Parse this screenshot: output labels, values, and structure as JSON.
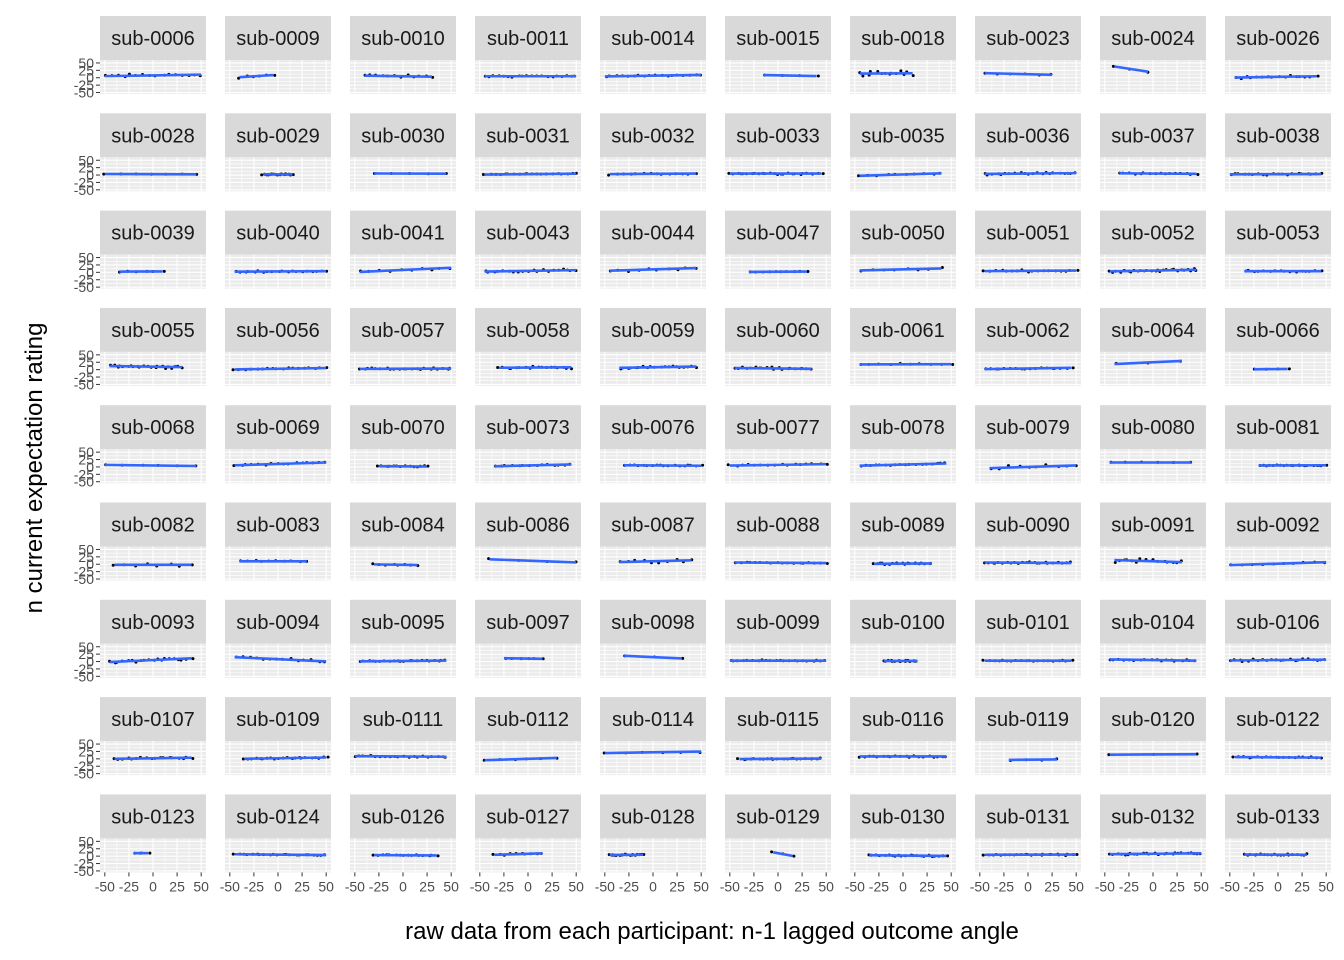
{
  "chart_data": {
    "type": "scatter",
    "xlabel": "raw data from each participant: n-1 lagged outcome angle",
    "ylabel": "n current expectation rating",
    "xlim": [
      -55,
      55
    ],
    "ylim": [
      -55,
      60
    ],
    "x_ticks": [
      -50,
      -25,
      0,
      25,
      50
    ],
    "x_tick_labels": [
      "-50",
      "-25",
      "0",
      "25",
      "50"
    ],
    "y_ticks": [
      -50,
      -25,
      0,
      25,
      50
    ],
    "y_tick_labels": [
      "-50",
      "-25",
      "0",
      "25",
      "50"
    ],
    "grid": true,
    "facet_columns": 10,
    "colors": {
      "panel_bg": "#ebebeb",
      "strip_bg": "#d9d9d9",
      "grid": "#ffffff",
      "points": "#000000",
      "fit_line": "#3366ff"
    },
    "panels": [
      {
        "label": "sub-0006",
        "xrange": [
          -50,
          50
        ],
        "intercept": 8,
        "slope": 0.05,
        "n": 16,
        "spread": 8
      },
      {
        "label": "sub-0009",
        "xrange": [
          -40,
          -5
        ],
        "intercept": 10,
        "slope": 0.2,
        "n": 6,
        "spread": 9
      },
      {
        "label": "sub-0010",
        "xrange": [
          -40,
          30
        ],
        "intercept": 5,
        "slope": -0.05,
        "n": 12,
        "spread": 6
      },
      {
        "label": "sub-0011",
        "xrange": [
          -45,
          50
        ],
        "intercept": 5,
        "slope": 0.0,
        "n": 20,
        "spread": 4
      },
      {
        "label": "sub-0014",
        "xrange": [
          -50,
          50
        ],
        "intercept": 7,
        "slope": 0.05,
        "n": 18,
        "spread": 3
      },
      {
        "label": "sub-0015",
        "xrange": [
          -15,
          40
        ],
        "intercept": 8,
        "slope": -0.06,
        "n": 4,
        "spread": 2
      },
      {
        "label": "sub-0018",
        "xrange": [
          -45,
          10
        ],
        "intercept": 15,
        "slope": 0.02,
        "n": 14,
        "spread": 12
      },
      {
        "label": "sub-0023",
        "xrange": [
          -45,
          25
        ],
        "intercept": 12,
        "slope": -0.08,
        "n": 6,
        "spread": 3
      },
      {
        "label": "sub-0024",
        "xrange": [
          -40,
          -5
        ],
        "intercept": 18,
        "slope": -0.5,
        "n": 3,
        "spread": 3
      },
      {
        "label": "sub-0026",
        "xrange": [
          -45,
          40
        ],
        "intercept": 3,
        "slope": 0.05,
        "n": 16,
        "spread": 6
      },
      {
        "label": "sub-0028",
        "xrange": [
          -50,
          45
        ],
        "intercept": 3,
        "slope": -0.01,
        "n": 7,
        "spread": 1
      },
      {
        "label": "sub-0029",
        "xrange": [
          -15,
          15
        ],
        "intercept": 2,
        "slope": 0.0,
        "n": 20,
        "spread": 3
      },
      {
        "label": "sub-0030",
        "xrange": [
          -30,
          45
        ],
        "intercept": 5,
        "slope": -0.01,
        "n": 5,
        "spread": 1
      },
      {
        "label": "sub-0031",
        "xrange": [
          -45,
          50
        ],
        "intercept": 3,
        "slope": 0.03,
        "n": 20,
        "spread": 3
      },
      {
        "label": "sub-0032",
        "xrange": [
          -45,
          45
        ],
        "intercept": 4,
        "slope": 0.02,
        "n": 14,
        "spread": 4
      },
      {
        "label": "sub-0033",
        "xrange": [
          -50,
          45
        ],
        "intercept": 5,
        "slope": 0.0,
        "n": 26,
        "spread": 4
      },
      {
        "label": "sub-0035",
        "xrange": [
          -45,
          40
        ],
        "intercept": 2,
        "slope": 0.1,
        "n": 10,
        "spread": 4
      },
      {
        "label": "sub-0036",
        "xrange": [
          -45,
          50
        ],
        "intercept": 5,
        "slope": 0.03,
        "n": 22,
        "spread": 5
      },
      {
        "label": "sub-0037",
        "xrange": [
          -35,
          45
        ],
        "intercept": 5,
        "slope": -0.02,
        "n": 16,
        "spread": 4
      },
      {
        "label": "sub-0038",
        "xrange": [
          -50,
          45
        ],
        "intercept": 3,
        "slope": 0.01,
        "n": 20,
        "spread": 5
      },
      {
        "label": "sub-0039",
        "xrange": [
          -35,
          10
        ],
        "intercept": 3,
        "slope": 0.02,
        "n": 6,
        "spread": 3
      },
      {
        "label": "sub-0040",
        "xrange": [
          -45,
          50
        ],
        "intercept": 3,
        "slope": 0.02,
        "n": 20,
        "spread": 3
      },
      {
        "label": "sub-0041",
        "xrange": [
          -45,
          50
        ],
        "intercept": 8,
        "slope": 0.15,
        "n": 10,
        "spread": 5
      },
      {
        "label": "sub-0043",
        "xrange": [
          -45,
          50
        ],
        "intercept": 5,
        "slope": 0.05,
        "n": 20,
        "spread": 6
      },
      {
        "label": "sub-0044",
        "xrange": [
          -45,
          45
        ],
        "intercept": 10,
        "slope": 0.1,
        "n": 10,
        "spread": 10
      },
      {
        "label": "sub-0047",
        "xrange": [
          -30,
          30
        ],
        "intercept": 2,
        "slope": 0.02,
        "n": 10,
        "spread": 1
      },
      {
        "label": "sub-0050",
        "xrange": [
          -45,
          40
        ],
        "intercept": 10,
        "slope": 0.08,
        "n": 8,
        "spread": 5
      },
      {
        "label": "sub-0051",
        "xrange": [
          -45,
          50
        ],
        "intercept": 5,
        "slope": 0.02,
        "n": 18,
        "spread": 5
      },
      {
        "label": "sub-0052",
        "xrange": [
          -45,
          45
        ],
        "intercept": 6,
        "slope": 0.06,
        "n": 28,
        "spread": 5
      },
      {
        "label": "sub-0053",
        "xrange": [
          -35,
          45
        ],
        "intercept": 4,
        "slope": 0.0,
        "n": 16,
        "spread": 4
      },
      {
        "label": "sub-0055",
        "xrange": [
          -45,
          30
        ],
        "intercept": 10,
        "slope": -0.05,
        "n": 22,
        "spread": 8
      },
      {
        "label": "sub-0056",
        "xrange": [
          -45,
          50
        ],
        "intercept": 3,
        "slope": 0.05,
        "n": 18,
        "spread": 3
      },
      {
        "label": "sub-0057",
        "xrange": [
          -45,
          50
        ],
        "intercept": 3,
        "slope": 0.01,
        "n": 22,
        "spread": 4
      },
      {
        "label": "sub-0058",
        "xrange": [
          -30,
          45
        ],
        "intercept": 7,
        "slope": 0.02,
        "n": 18,
        "spread": 8
      },
      {
        "label": "sub-0059",
        "xrange": [
          -35,
          45
        ],
        "intercept": 8,
        "slope": 0.05,
        "n": 20,
        "spread": 5
      },
      {
        "label": "sub-0060",
        "xrange": [
          -45,
          35
        ],
        "intercept": 4,
        "slope": -0.03,
        "n": 20,
        "spread": 6
      },
      {
        "label": "sub-0061",
        "xrange": [
          -45,
          50
        ],
        "intercept": 18,
        "slope": 0.01,
        "n": 10,
        "spread": 3
      },
      {
        "label": "sub-0062",
        "xrange": [
          -45,
          45
        ],
        "intercept": 4,
        "slope": 0.05,
        "n": 18,
        "spread": 4
      },
      {
        "label": "sub-0064",
        "xrange": [
          -40,
          30
        ],
        "intercept": 25,
        "slope": 0.15,
        "n": 3,
        "spread": 4
      },
      {
        "label": "sub-0066",
        "xrange": [
          -25,
          10
        ],
        "intercept": 2,
        "slope": 0.03,
        "n": 4,
        "spread": 1
      },
      {
        "label": "sub-0068",
        "xrange": [
          -50,
          45
        ],
        "intercept": 5,
        "slope": -0.04,
        "n": 6,
        "spread": 2
      },
      {
        "label": "sub-0069",
        "xrange": [
          -45,
          50
        ],
        "intercept": 10,
        "slope": 0.1,
        "n": 16,
        "spread": 4
      },
      {
        "label": "sub-0070",
        "xrange": [
          -25,
          25
        ],
        "intercept": 2,
        "slope": -0.02,
        "n": 14,
        "spread": 3
      },
      {
        "label": "sub-0073",
        "xrange": [
          -35,
          45
        ],
        "intercept": 5,
        "slope": 0.08,
        "n": 14,
        "spread": 4
      },
      {
        "label": "sub-0076",
        "xrange": [
          -30,
          50
        ],
        "intercept": 5,
        "slope": -0.02,
        "n": 18,
        "spread": 3
      },
      {
        "label": "sub-0077",
        "xrange": [
          -50,
          50
        ],
        "intercept": 7,
        "slope": 0.05,
        "n": 16,
        "spread": 4
      },
      {
        "label": "sub-0078",
        "xrange": [
          -45,
          45
        ],
        "intercept": 8,
        "slope": 0.08,
        "n": 18,
        "spread": 4
      },
      {
        "label": "sub-0079",
        "xrange": [
          -40,
          50
        ],
        "intercept": 0,
        "slope": 0.1,
        "n": 10,
        "spread": 10
      },
      {
        "label": "sub-0080",
        "xrange": [
          -45,
          40
        ],
        "intercept": 15,
        "slope": 0.0,
        "n": 6,
        "spread": 2
      },
      {
        "label": "sub-0081",
        "xrange": [
          -20,
          50
        ],
        "intercept": 5,
        "slope": 0.01,
        "n": 20,
        "spread": 3
      },
      {
        "label": "sub-0082",
        "xrange": [
          -40,
          40
        ],
        "intercept": -2,
        "slope": 0.0,
        "n": 8,
        "spread": 12
      },
      {
        "label": "sub-0083",
        "xrange": [
          -40,
          30
        ],
        "intercept": 10,
        "slope": 0.0,
        "n": 10,
        "spread": 4
      },
      {
        "label": "sub-0084",
        "xrange": [
          -30,
          15
        ],
        "intercept": -2,
        "slope": -0.05,
        "n": 8,
        "spread": 5
      },
      {
        "label": "sub-0086",
        "xrange": [
          -40,
          50
        ],
        "intercept": 12,
        "slope": -0.12,
        "n": 4,
        "spread": 4
      },
      {
        "label": "sub-0087",
        "xrange": [
          -35,
          40
        ],
        "intercept": 10,
        "slope": 0.08,
        "n": 10,
        "spread": 10
      },
      {
        "label": "sub-0088",
        "xrange": [
          -45,
          50
        ],
        "intercept": 5,
        "slope": -0.02,
        "n": 18,
        "spread": 3
      },
      {
        "label": "sub-0089",
        "xrange": [
          -30,
          30
        ],
        "intercept": 2,
        "slope": 0.02,
        "n": 20,
        "spread": 4
      },
      {
        "label": "sub-0090",
        "xrange": [
          -45,
          45
        ],
        "intercept": 5,
        "slope": -0.02,
        "n": 24,
        "spread": 5
      },
      {
        "label": "sub-0091",
        "xrange": [
          -40,
          30
        ],
        "intercept": 10,
        "slope": -0.1,
        "n": 16,
        "spread": 12
      },
      {
        "label": "sub-0092",
        "xrange": [
          -50,
          50
        ],
        "intercept": 2,
        "slope": 0.1,
        "n": 10,
        "spread": 3
      },
      {
        "label": "sub-0093",
        "xrange": [
          -45,
          40
        ],
        "intercept": 5,
        "slope": 0.15,
        "n": 20,
        "spread": 8
      },
      {
        "label": "sub-0094",
        "xrange": [
          -45,
          50
        ],
        "intercept": 8,
        "slope": -0.15,
        "n": 14,
        "spread": 5
      },
      {
        "label": "sub-0095",
        "xrange": [
          -45,
          45
        ],
        "intercept": 2,
        "slope": 0.03,
        "n": 22,
        "spread": 4
      },
      {
        "label": "sub-0097",
        "xrange": [
          -25,
          15
        ],
        "intercept": 10,
        "slope": -0.05,
        "n": 6,
        "spread": 2
      },
      {
        "label": "sub-0098",
        "xrange": [
          -30,
          30
        ],
        "intercept": 15,
        "slope": -0.15,
        "n": 3,
        "spread": 2
      },
      {
        "label": "sub-0099",
        "xrange": [
          -50,
          50
        ],
        "intercept": 3,
        "slope": 0.0,
        "n": 22,
        "spread": 3
      },
      {
        "label": "sub-0100",
        "xrange": [
          -20,
          15
        ],
        "intercept": 2,
        "slope": 0.0,
        "n": 16,
        "spread": 4
      },
      {
        "label": "sub-0101",
        "xrange": [
          -45,
          45
        ],
        "intercept": 3,
        "slope": 0.0,
        "n": 20,
        "spread": 3
      },
      {
        "label": "sub-0104",
        "xrange": [
          -45,
          45
        ],
        "intercept": 5,
        "slope": -0.05,
        "n": 18,
        "spread": 4
      },
      {
        "label": "sub-0106",
        "xrange": [
          -50,
          50
        ],
        "intercept": 5,
        "slope": 0.03,
        "n": 22,
        "spread": 5
      },
      {
        "label": "sub-0107",
        "xrange": [
          -40,
          40
        ],
        "intercept": 2,
        "slope": 0.05,
        "n": 18,
        "spread": 5
      },
      {
        "label": "sub-0109",
        "xrange": [
          -35,
          50
        ],
        "intercept": 2,
        "slope": 0.05,
        "n": 22,
        "spread": 4
      },
      {
        "label": "sub-0111",
        "xrange": [
          -50,
          45
        ],
        "intercept": 8,
        "slope": -0.02,
        "n": 20,
        "spread": 4
      },
      {
        "label": "sub-0112",
        "xrange": [
          -45,
          30
        ],
        "intercept": 0,
        "slope": 0.1,
        "n": 6,
        "spread": 4
      },
      {
        "label": "sub-0114",
        "xrange": [
          -50,
          50
        ],
        "intercept": 22,
        "slope": 0.05,
        "n": 6,
        "spread": 5
      },
      {
        "label": "sub-0115",
        "xrange": [
          -40,
          45
        ],
        "intercept": 0,
        "slope": 0.02,
        "n": 22,
        "spread": 4
      },
      {
        "label": "sub-0116",
        "xrange": [
          -45,
          45
        ],
        "intercept": 8,
        "slope": 0.0,
        "n": 20,
        "spread": 5
      },
      {
        "label": "sub-0119",
        "xrange": [
          -20,
          30
        ],
        "intercept": -3,
        "slope": 0.03,
        "n": 4,
        "spread": 5
      },
      {
        "label": "sub-0120",
        "xrange": [
          -45,
          45
        ],
        "intercept": 15,
        "slope": 0.02,
        "n": 3,
        "spread": 1
      },
      {
        "label": "sub-0122",
        "xrange": [
          -45,
          45
        ],
        "intercept": 5,
        "slope": -0.02,
        "n": 20,
        "spread": 3
      },
      {
        "label": "sub-0123",
        "xrange": [
          -20,
          -5
        ],
        "intercept": 10,
        "slope": 0.0,
        "n": 4,
        "spread": 1
      },
      {
        "label": "sub-0124",
        "xrange": [
          -45,
          50
        ],
        "intercept": 5,
        "slope": -0.03,
        "n": 22,
        "spread": 3
      },
      {
        "label": "sub-0126",
        "xrange": [
          -30,
          35
        ],
        "intercept": 3,
        "slope": -0.02,
        "n": 16,
        "spread": 3
      },
      {
        "label": "sub-0127",
        "xrange": [
          -35,
          15
        ],
        "intercept": 8,
        "slope": 0.1,
        "n": 10,
        "spread": 4
      },
      {
        "label": "sub-0128",
        "xrange": [
          -45,
          -10
        ],
        "intercept": 5,
        "slope": 0.02,
        "n": 20,
        "spread": 4
      },
      {
        "label": "sub-0129",
        "xrange": [
          -5,
          15
        ],
        "intercept": 10,
        "slope": -0.6,
        "n": 3,
        "spread": 1
      },
      {
        "label": "sub-0130",
        "xrange": [
          -35,
          45
        ],
        "intercept": 2,
        "slope": -0.03,
        "n": 22,
        "spread": 4
      },
      {
        "label": "sub-0131",
        "xrange": [
          -45,
          50
        ],
        "intercept": 5,
        "slope": 0.01,
        "n": 24,
        "spread": 4
      },
      {
        "label": "sub-0132",
        "xrange": [
          -45,
          50
        ],
        "intercept": 8,
        "slope": 0.03,
        "n": 26,
        "spread": 5
      },
      {
        "label": "sub-0133",
        "xrange": [
          -35,
          30
        ],
        "intercept": 5,
        "slope": -0.01,
        "n": 20,
        "spread": 4
      }
    ]
  }
}
